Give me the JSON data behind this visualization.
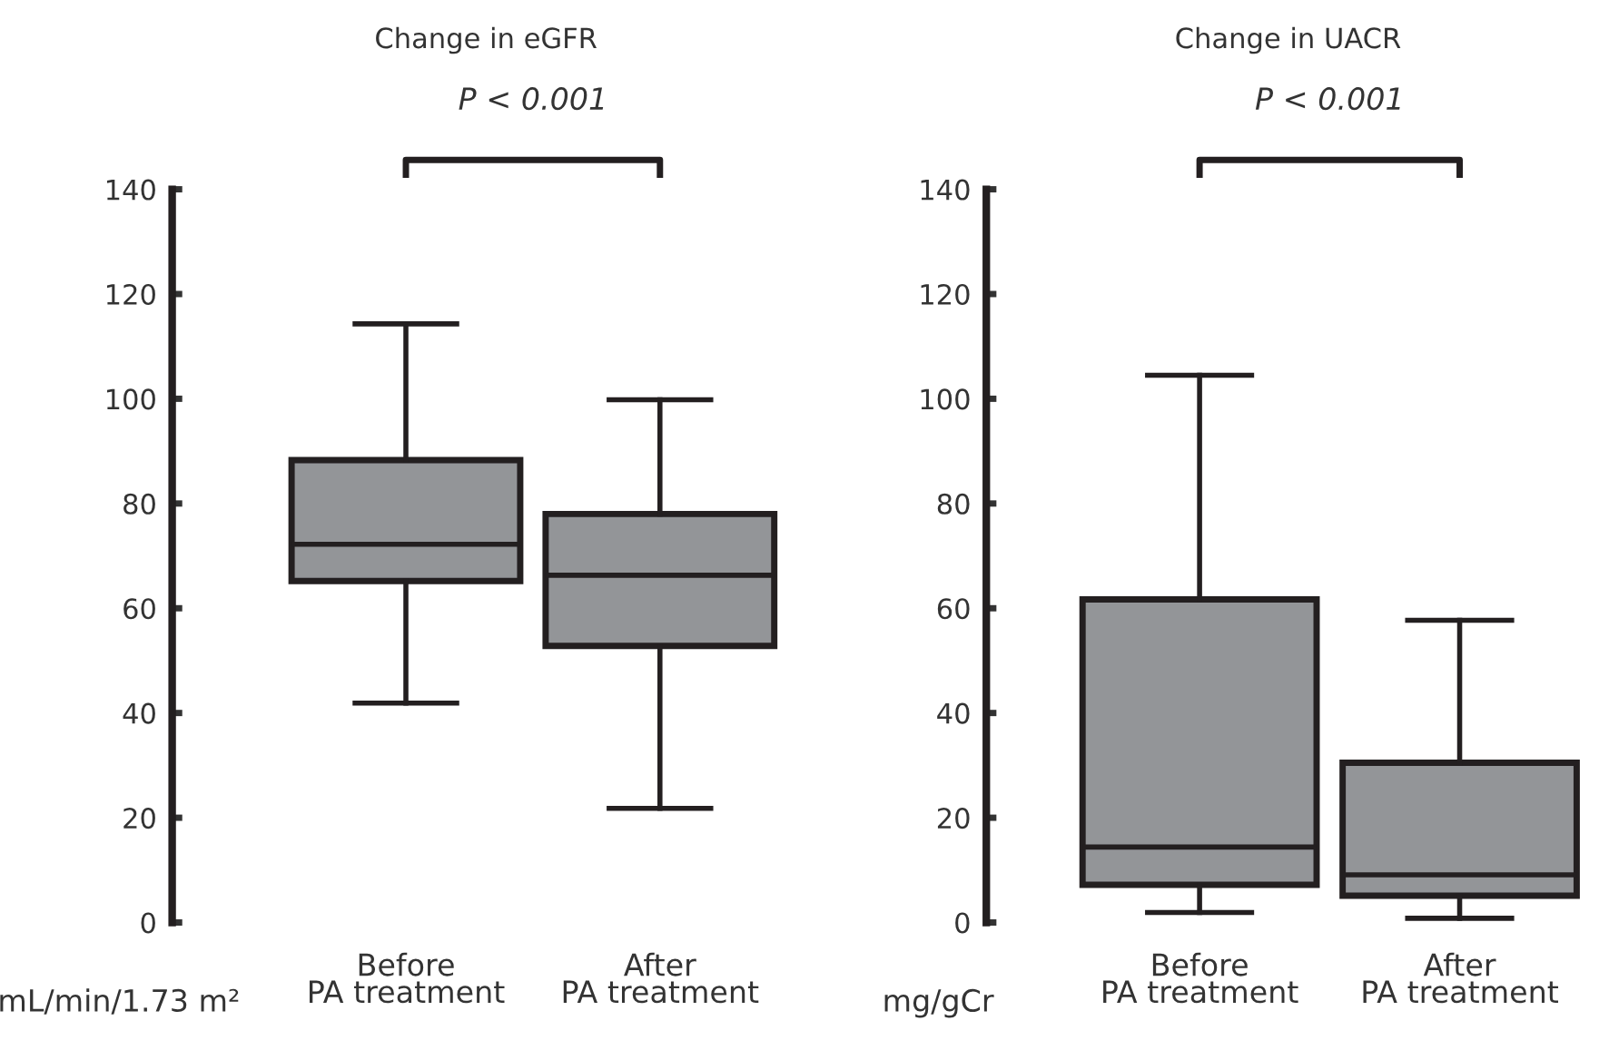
{
  "chart_data": [
    {
      "type": "box",
      "title": "Change in eGFR",
      "xlabel": "mL/min/1.73 m²",
      "categories": [
        "Before\nPA treatment",
        "After\nPA treatment"
      ],
      "ylim": [
        0,
        140
      ],
      "yticks": [
        0,
        20,
        40,
        60,
        80,
        100,
        120,
        140
      ],
      "annotations": [
        "P < 0.001"
      ],
      "series": [
        {
          "color": "#939598",
          "boxes": [
            {
              "low": 41.9,
              "q1": 65.2,
              "median": 72.2,
              "q3": 88.3,
              "high": 114.3
            },
            {
              "low": 21.8,
              "q1": 52.8,
              "median": 66.3,
              "q3": 78.0,
              "high": 99.8
            }
          ]
        }
      ]
    },
    {
      "type": "box",
      "title": "Change in UACR",
      "xlabel": "mg/gCr",
      "categories": [
        "Before\nPA treatment",
        "After\nPA treatment"
      ],
      "ylim": [
        0,
        140
      ],
      "yticks": [
        0,
        20,
        40,
        60,
        80,
        100,
        120,
        140
      ],
      "annotations": [
        "P < 0.001"
      ],
      "series": [
        {
          "color": "#939598",
          "boxes": [
            {
              "low": 1.9,
              "q1": 7.2,
              "median": 14.4,
              "q3": 61.7,
              "high": 104.5
            },
            {
              "low": 0.8,
              "q1": 5.1,
              "median": 9.1,
              "q3": 30.5,
              "high": 57.7
            }
          ]
        }
      ]
    }
  ]
}
